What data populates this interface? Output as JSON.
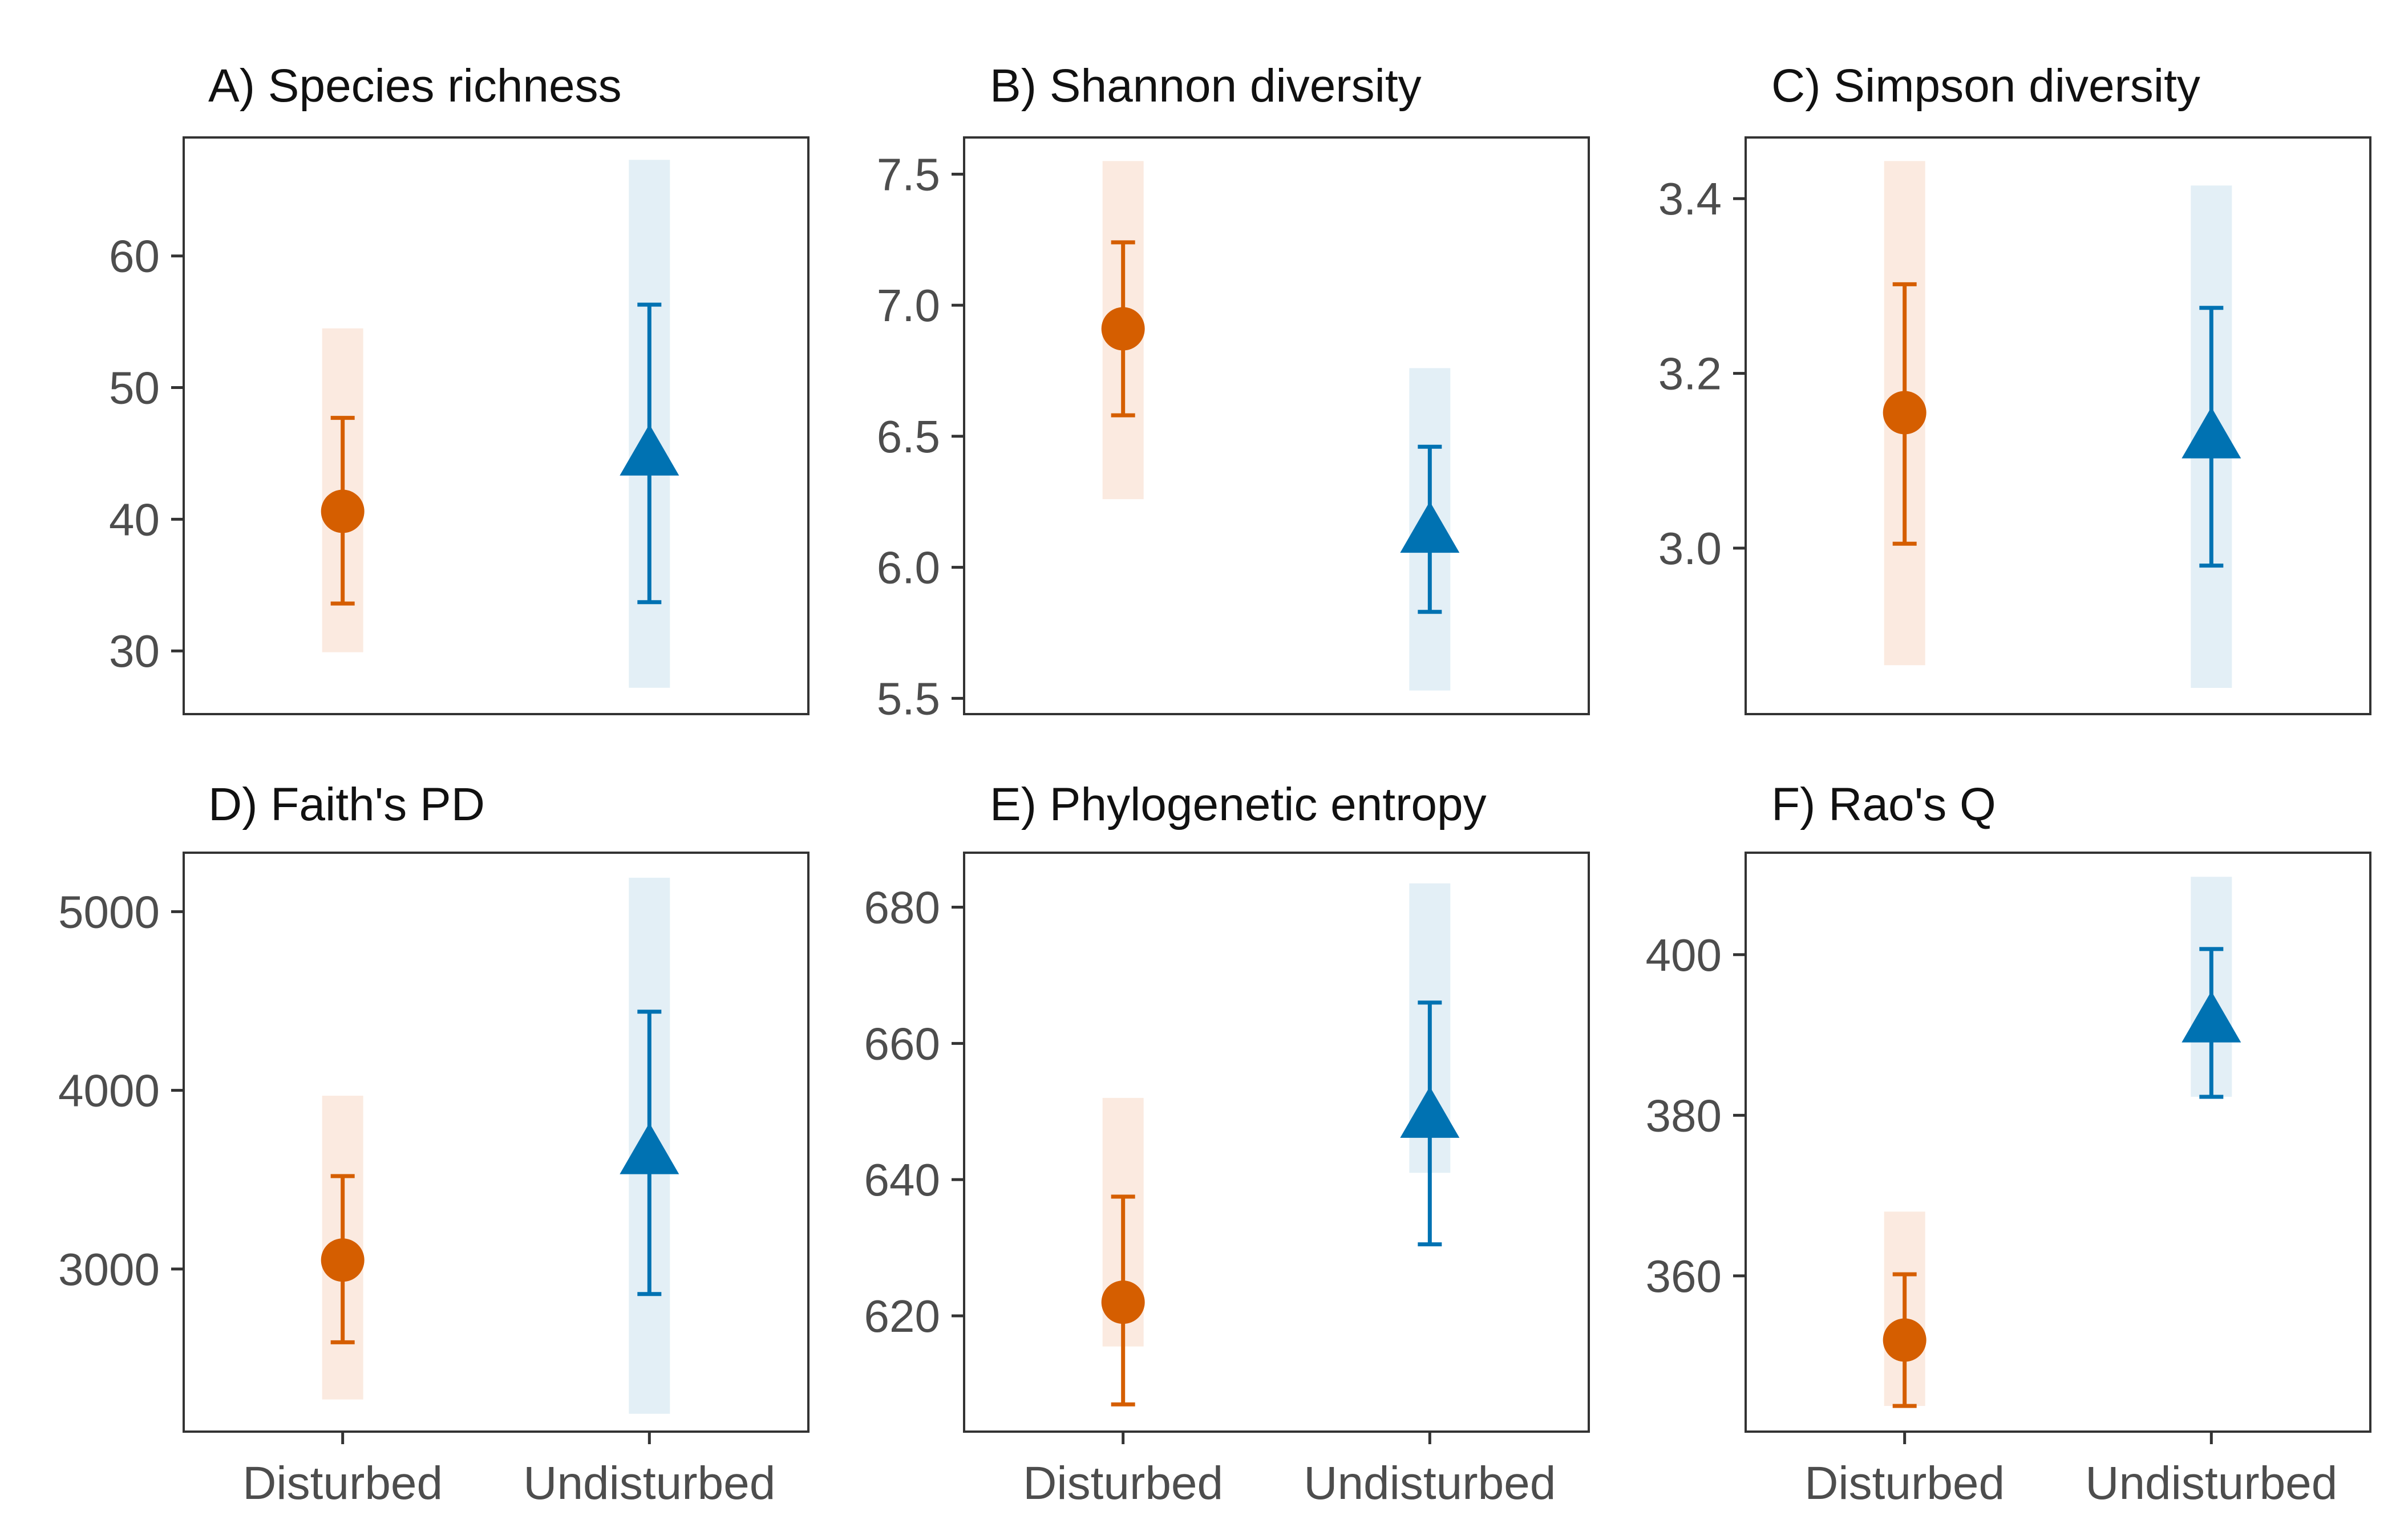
{
  "colors": {
    "disturbed": "#D55E00",
    "undisturbed": "#0072B2",
    "disturbed_band": "#FBEAE0",
    "undisturbed_band": "#E3EFF6",
    "axis": "#333333",
    "tick_text": "#4d4d4d"
  },
  "chart_data": [
    {
      "type": "scatter",
      "title": "A) Species richness",
      "categories": [
        "Disturbed",
        "Undisturbed"
      ],
      "ylim": [
        25.2,
        69.0
      ],
      "yticks": [
        30,
        40,
        50,
        60
      ],
      "series": [
        {
          "category": "Disturbed",
          "marker": "circle",
          "value": 40.6,
          "ci_low": 33.6,
          "ci_high": 47.7,
          "pi_low": 29.9,
          "pi_high": 54.5
        },
        {
          "category": "Undisturbed",
          "marker": "triangle",
          "value": 44.8,
          "ci_low": 33.7,
          "ci_high": 56.3,
          "pi_low": 27.2,
          "pi_high": 67.3
        }
      ]
    },
    {
      "type": "scatter",
      "title": "B) Shannon diversity",
      "categories": [
        "Disturbed",
        "Undisturbed"
      ],
      "ylim": [
        5.44,
        7.64
      ],
      "yticks": [
        5.5,
        6.0,
        6.5,
        7.0,
        7.5
      ],
      "series": [
        {
          "category": "Disturbed",
          "marker": "circle",
          "value": 6.91,
          "ci_low": 6.58,
          "ci_high": 7.24,
          "pi_low": 6.26,
          "pi_high": 7.55
        },
        {
          "category": "Undisturbed",
          "marker": "triangle",
          "value": 6.13,
          "ci_low": 5.83,
          "ci_high": 6.46,
          "pi_low": 5.53,
          "pi_high": 6.76
        }
      ]
    },
    {
      "type": "scatter",
      "title": "C) Simpson diversity",
      "categories": [
        "Disturbed",
        "Undisturbed"
      ],
      "ylim": [
        2.81,
        3.47
      ],
      "yticks": [
        3.0,
        3.2,
        3.4
      ],
      "series": [
        {
          "category": "Disturbed",
          "marker": "circle",
          "value": 3.155,
          "ci_low": 3.005,
          "ci_high": 3.302,
          "pi_low": 2.866,
          "pi_high": 3.443
        },
        {
          "category": "Undisturbed",
          "marker": "triangle",
          "value": 3.125,
          "ci_low": 2.98,
          "ci_high": 3.275,
          "pi_low": 2.84,
          "pi_high": 3.415
        }
      ]
    },
    {
      "type": "scatter",
      "title": "D) Faith's PD",
      "categories": [
        "Disturbed",
        "Undisturbed"
      ],
      "ylim": [
        2090,
        5330
      ],
      "yticks": [
        3000,
        4000,
        5000
      ],
      "series": [
        {
          "category": "Disturbed",
          "marker": "circle",
          "value": 3050,
          "ci_low": 2590,
          "ci_high": 3520,
          "pi_low": 2270,
          "pi_high": 3970
        },
        {
          "category": "Undisturbed",
          "marker": "triangle",
          "value": 3640,
          "ci_low": 2860,
          "ci_high": 4440,
          "pi_low": 2190,
          "pi_high": 5190
        }
      ]
    },
    {
      "type": "scatter",
      "title": "E) Phylogenetic entropy",
      "categories": [
        "Disturbed",
        "Undisturbed"
      ],
      "ylim": [
        603,
        688
      ],
      "yticks": [
        620,
        640,
        660,
        680
      ],
      "series": [
        {
          "category": "Disturbed",
          "marker": "circle",
          "value": 622,
          "ci_low": 607,
          "ci_high": 637.5,
          "pi_low": 615.5,
          "pi_high": 652
        },
        {
          "category": "Undisturbed",
          "marker": "triangle",
          "value": 649,
          "ci_low": 630.5,
          "ci_high": 666,
          "pi_low": 641,
          "pi_high": 683.5
        }
      ]
    },
    {
      "type": "scatter",
      "title": "F) Rao's Q",
      "categories": [
        "Disturbed",
        "Undisturbed"
      ],
      "ylim": [
        340.6,
        412.7
      ],
      "yticks": [
        360,
        380,
        400
      ],
      "series": [
        {
          "category": "Disturbed",
          "marker": "circle",
          "value": 352,
          "ci_low": 343.8,
          "ci_high": 360.2,
          "pi_low": 343.8,
          "pi_high": 368
        },
        {
          "category": "Undisturbed",
          "marker": "triangle",
          "value": 391.5,
          "ci_low": 382.3,
          "ci_high": 400.7,
          "pi_low": 382.3,
          "pi_high": 409.7
        }
      ]
    }
  ]
}
